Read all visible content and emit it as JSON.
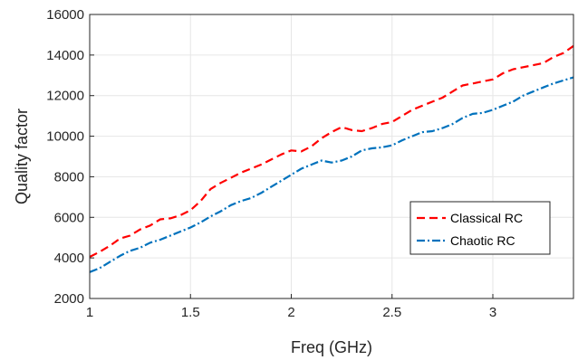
{
  "chart_data": {
    "type": "line",
    "title": "",
    "xlabel": "Freq (GHz)",
    "ylabel": "Quality factor",
    "xlim": [
      1,
      3.4
    ],
    "ylim": [
      2000,
      16000
    ],
    "xticks": [
      1,
      1.5,
      2,
      2.5,
      3
    ],
    "xtick_labels": [
      "1",
      "1.5",
      "2",
      "2.5",
      "3"
    ],
    "yticks": [
      2000,
      4000,
      6000,
      8000,
      10000,
      12000,
      14000,
      16000
    ],
    "ytick_labels": [
      "2000",
      "4000",
      "6000",
      "8000",
      "10000",
      "12000",
      "14000",
      "16000"
    ],
    "grid": true,
    "legend_position": "bottom-right",
    "series": [
      {
        "name": "Classical RC",
        "color": "#ff0000",
        "style": "dashed",
        "x": [
          1.0,
          1.05,
          1.1,
          1.15,
          1.2,
          1.25,
          1.3,
          1.35,
          1.4,
          1.45,
          1.5,
          1.55,
          1.6,
          1.65,
          1.7,
          1.75,
          1.8,
          1.85,
          1.9,
          1.95,
          2.0,
          2.05,
          2.1,
          2.15,
          2.2,
          2.25,
          2.3,
          2.35,
          2.4,
          2.45,
          2.5,
          2.55,
          2.6,
          2.65,
          2.7,
          2.75,
          2.8,
          2.85,
          2.9,
          2.95,
          3.0,
          3.05,
          3.1,
          3.15,
          3.2,
          3.25,
          3.3,
          3.35,
          3.4
        ],
        "y": [
          4050,
          4300,
          4600,
          4950,
          5100,
          5400,
          5600,
          5900,
          5950,
          6100,
          6350,
          6800,
          7400,
          7700,
          7950,
          8200,
          8400,
          8600,
          8850,
          9100,
          9300,
          9250,
          9500,
          9900,
          10200,
          10450,
          10300,
          10250,
          10400,
          10600,
          10700,
          11000,
          11300,
          11500,
          11700,
          11900,
          12200,
          12500,
          12600,
          12700,
          12800,
          13100,
          13300,
          13400,
          13500,
          13600,
          13900,
          14100,
          14450
        ]
      },
      {
        "name": "Chaotic RC",
        "color": "#0072bd",
        "style": "dashdot",
        "x": [
          1.0,
          1.05,
          1.1,
          1.15,
          1.2,
          1.25,
          1.3,
          1.35,
          1.4,
          1.45,
          1.5,
          1.55,
          1.6,
          1.65,
          1.7,
          1.75,
          1.8,
          1.85,
          1.9,
          1.95,
          2.0,
          2.05,
          2.1,
          2.15,
          2.2,
          2.25,
          2.3,
          2.35,
          2.4,
          2.45,
          2.5,
          2.55,
          2.6,
          2.65,
          2.7,
          2.75,
          2.8,
          2.85,
          2.9,
          2.95,
          3.0,
          3.05,
          3.1,
          3.15,
          3.2,
          3.25,
          3.3,
          3.35,
          3.4
        ],
        "y": [
          3300,
          3500,
          3800,
          4100,
          4350,
          4500,
          4750,
          4900,
          5100,
          5300,
          5500,
          5750,
          6050,
          6300,
          6600,
          6800,
          6950,
          7200,
          7500,
          7800,
          8100,
          8400,
          8600,
          8800,
          8700,
          8800,
          9000,
          9300,
          9400,
          9450,
          9550,
          9800,
          10000,
          10200,
          10250,
          10400,
          10600,
          10900,
          11100,
          11150,
          11300,
          11500,
          11700,
          12000,
          12200,
          12400,
          12600,
          12750,
          12900
        ]
      }
    ]
  }
}
